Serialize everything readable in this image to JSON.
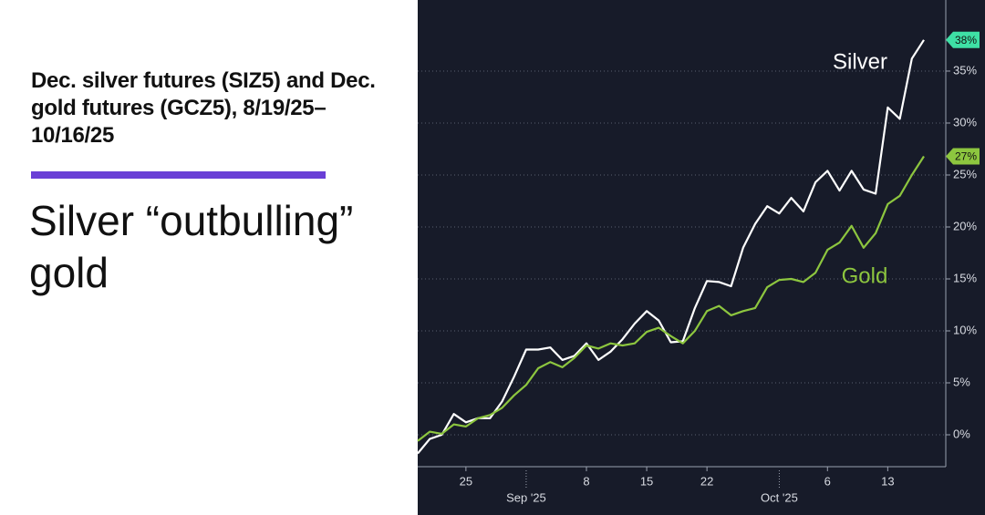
{
  "chart_data": {
    "type": "line",
    "title": "Dec. silver futures (SIZ5) and Dec. gold futures (GCZ5), 8/19/25–10/16/25",
    "subtitle": "Silver “outbulling” gold",
    "categories": [
      null,
      null,
      null,
      null,
      "25",
      null,
      null,
      null,
      null,
      "Sep '25",
      null,
      null,
      null,
      null,
      "8",
      null,
      null,
      null,
      null,
      "15",
      null,
      null,
      null,
      null,
      "22",
      null,
      null,
      null,
      null,
      null,
      "Oct '25",
      null,
      null,
      null,
      "6",
      null,
      null,
      null,
      null,
      "13",
      null,
      null,
      null
    ],
    "series": [
      {
        "name": "Silver",
        "color": "#ffffff",
        "label_color": "#3ee0a5",
        "values": [
          -1.8,
          -0.4,
          0.0,
          2.0,
          1.2,
          1.6,
          1.6,
          3.2,
          5.6,
          8.2,
          8.2,
          8.4,
          7.2,
          7.6,
          8.8,
          7.2,
          8.0,
          9.2,
          10.7,
          11.9,
          11.0,
          8.9,
          9.0,
          12.2,
          14.8,
          14.7,
          14.3,
          18.0,
          20.3,
          22.0,
          21.3,
          22.8,
          21.5,
          24.3,
          25.4,
          23.5,
          25.4,
          23.6,
          23.2,
          31.5,
          30.4,
          36.2,
          38.0
        ],
        "value_labels": [
          null,
          null,
          null,
          null,
          null,
          null,
          null,
          null,
          null,
          null,
          null,
          null,
          null,
          null,
          null,
          null,
          null,
          null,
          null,
          null,
          null,
          null,
          null,
          null,
          null,
          null,
          null,
          null,
          null,
          null,
          null,
          null,
          null,
          null,
          null,
          null,
          null,
          null,
          null,
          null,
          null,
          null,
          "38%"
        ]
      },
      {
        "name": "Gold",
        "color": "#8dc63f",
        "label_color": "#8dc63f",
        "values": [
          -0.6,
          0.3,
          0.1,
          1.0,
          0.8,
          1.6,
          1.9,
          2.6,
          3.8,
          4.8,
          6.4,
          7.0,
          6.5,
          7.4,
          8.6,
          8.3,
          8.8,
          8.6,
          8.8,
          9.9,
          10.3,
          9.5,
          8.8,
          10.0,
          11.9,
          12.4,
          11.5,
          11.9,
          12.2,
          14.2,
          14.9,
          15.0,
          14.7,
          15.6,
          17.8,
          18.5,
          20.1,
          18.0,
          19.4,
          22.2,
          23.0,
          25.0,
          26.8
        ],
        "value_labels": [
          null,
          null,
          null,
          null,
          null,
          null,
          null,
          null,
          null,
          null,
          null,
          null,
          null,
          null,
          null,
          null,
          null,
          null,
          null,
          null,
          null,
          null,
          null,
          null,
          null,
          null,
          null,
          null,
          null,
          null,
          null,
          null,
          null,
          null,
          null,
          null,
          null,
          null,
          null,
          null,
          null,
          null,
          "27%"
        ]
      }
    ],
    "ylim": [
      -3.07,
      41.84
    ],
    "yticks": [
      {
        "value": 0,
        "label": "0%"
      },
      {
        "value": 5,
        "label": "5%"
      },
      {
        "value": 10,
        "label": "10%"
      },
      {
        "value": 15,
        "label": "15%"
      },
      {
        "value": 20,
        "label": "20%"
      },
      {
        "value": 25,
        "label": "25%"
      },
      {
        "value": 30,
        "label": "30%"
      },
      {
        "value": 35,
        "label": "35%"
      }
    ],
    "grid": true,
    "background": "#171b29"
  }
}
